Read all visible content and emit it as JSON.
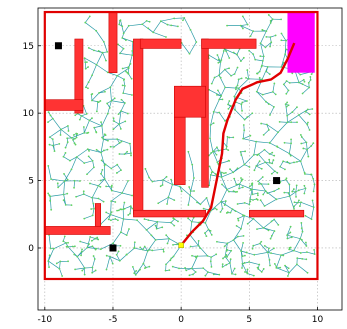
{
  "chart_data": {
    "type": "scatter",
    "title": "",
    "xlabel": "",
    "ylabel": "",
    "xlim": [
      -10.5,
      11.8
    ],
    "ylim": [
      -4.6,
      17.8
    ],
    "xticks": [
      -10,
      -5,
      0,
      5,
      10
    ],
    "yticks": [
      0,
      5,
      10,
      15
    ],
    "grid": true,
    "colors": {
      "walls": "#ff3333",
      "wall_edge": "#cc0000",
      "tree_edges": "#2b9ba6",
      "tree_nodes": "#5fd35f",
      "path": "#e00000",
      "goal_region": "#ff00ff",
      "landmarks": "#000000",
      "start": "#ffff00"
    },
    "boundary": {
      "x": [
        -10,
        10
      ],
      "y": [
        -2.3,
        17.5
      ]
    },
    "start": {
      "x": 0,
      "y": 0.2
    },
    "goal_region": {
      "x": [
        7.8,
        9.8
      ],
      "y": [
        13,
        17.5
      ]
    },
    "obstacles": [
      {
        "x": [
          -5.3,
          -4.7
        ],
        "y": [
          13.0,
          17.5
        ]
      },
      {
        "x": [
          -7.8,
          -7.2
        ],
        "y": [
          10.0,
          15.5
        ]
      },
      {
        "x": [
          -10.0,
          -7.2
        ],
        "y": [
          10.2,
          11.0
        ]
      },
      {
        "x": [
          -3.5,
          -2.8
        ],
        "y": [
          2.5,
          15.5
        ]
      },
      {
        "x": [
          -3.0,
          0.0
        ],
        "y": [
          14.8,
          15.5
        ]
      },
      {
        "x": [
          1.5,
          2.0
        ],
        "y": [
          4.5,
          15.5
        ]
      },
      {
        "x": [
          1.5,
          5.5
        ],
        "y": [
          14.8,
          15.5
        ]
      },
      {
        "x": [
          -0.5,
          1.8
        ],
        "y": [
          9.7,
          12.0
        ]
      },
      {
        "x": [
          -0.5,
          0.3
        ],
        "y": [
          4.7,
          9.7
        ]
      },
      {
        "x": [
          -3.5,
          1.8
        ],
        "y": [
          2.3,
          2.8
        ]
      },
      {
        "x": [
          -6.3,
          -5.9
        ],
        "y": [
          1.5,
          3.3
        ]
      },
      {
        "x": [
          -10.0,
          -5.2
        ],
        "y": [
          1.0,
          1.6
        ]
      },
      {
        "x": [
          5.0,
          9.0
        ],
        "y": [
          2.3,
          2.8
        ]
      }
    ],
    "landmarks": [
      {
        "x": -9.0,
        "y": 15.0
      },
      {
        "x": -5.0,
        "y": 0.0
      },
      {
        "x": 7.0,
        "y": 5.0
      }
    ],
    "path": {
      "x": [
        0,
        0.8,
        1.6,
        2.2,
        2.6,
        3.0,
        3.1,
        3.4,
        4.0,
        4.5,
        5.6,
        6.6,
        7.3,
        7.8,
        8.3
      ],
      "y": [
        0.2,
        1.2,
        2.0,
        3.0,
        5.0,
        7.0,
        8.5,
        9.5,
        11.0,
        11.8,
        12.3,
        12.5,
        13.0,
        14.0,
        15.2
      ]
    },
    "tree_size": 900
  }
}
